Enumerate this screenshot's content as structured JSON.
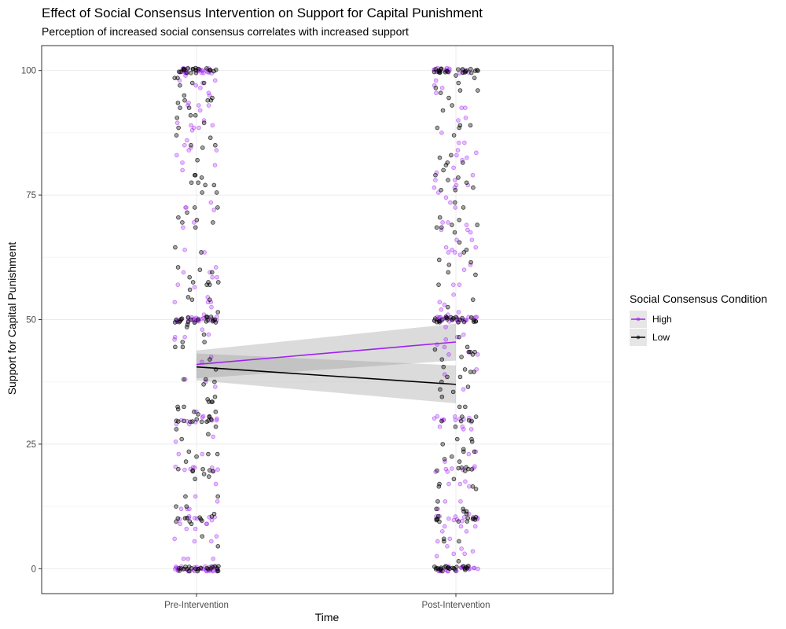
{
  "chart_data": {
    "type": "scatter",
    "title": "Effect of Social Consensus Intervention on Support for Capital Punishment",
    "subtitle": "Perception of increased social consensus correlates with increased support",
    "xlabel": "Time",
    "ylabel": "Support for Capital Punishment",
    "categories": [
      "Pre-Intervention",
      "Post-Intervention"
    ],
    "yticks": [
      0,
      25,
      50,
      75,
      100
    ],
    "ylim": [
      -5,
      105
    ],
    "grid": true,
    "legend": {
      "title": "Social Consensus Condition",
      "position": "right"
    },
    "series": [
      {
        "name": "High",
        "color": "#a020f0",
        "trend_line": [
          41.0,
          45.5
        ],
        "ci_lower": [
          38.2,
          41.8
        ],
        "ci_upper": [
          43.8,
          49.2
        ]
      },
      {
        "name": "Low",
        "color": "#000000",
        "trend_line": [
          40.5,
          37.0
        ],
        "ci_lower": [
          37.8,
          33.2
        ],
        "ci_upper": [
          43.2,
          40.8
        ]
      }
    ],
    "point_distribution": {
      "note_values": [
        0,
        10,
        20,
        30,
        50,
        100
      ],
      "range": [
        0,
        100
      ]
    }
  }
}
